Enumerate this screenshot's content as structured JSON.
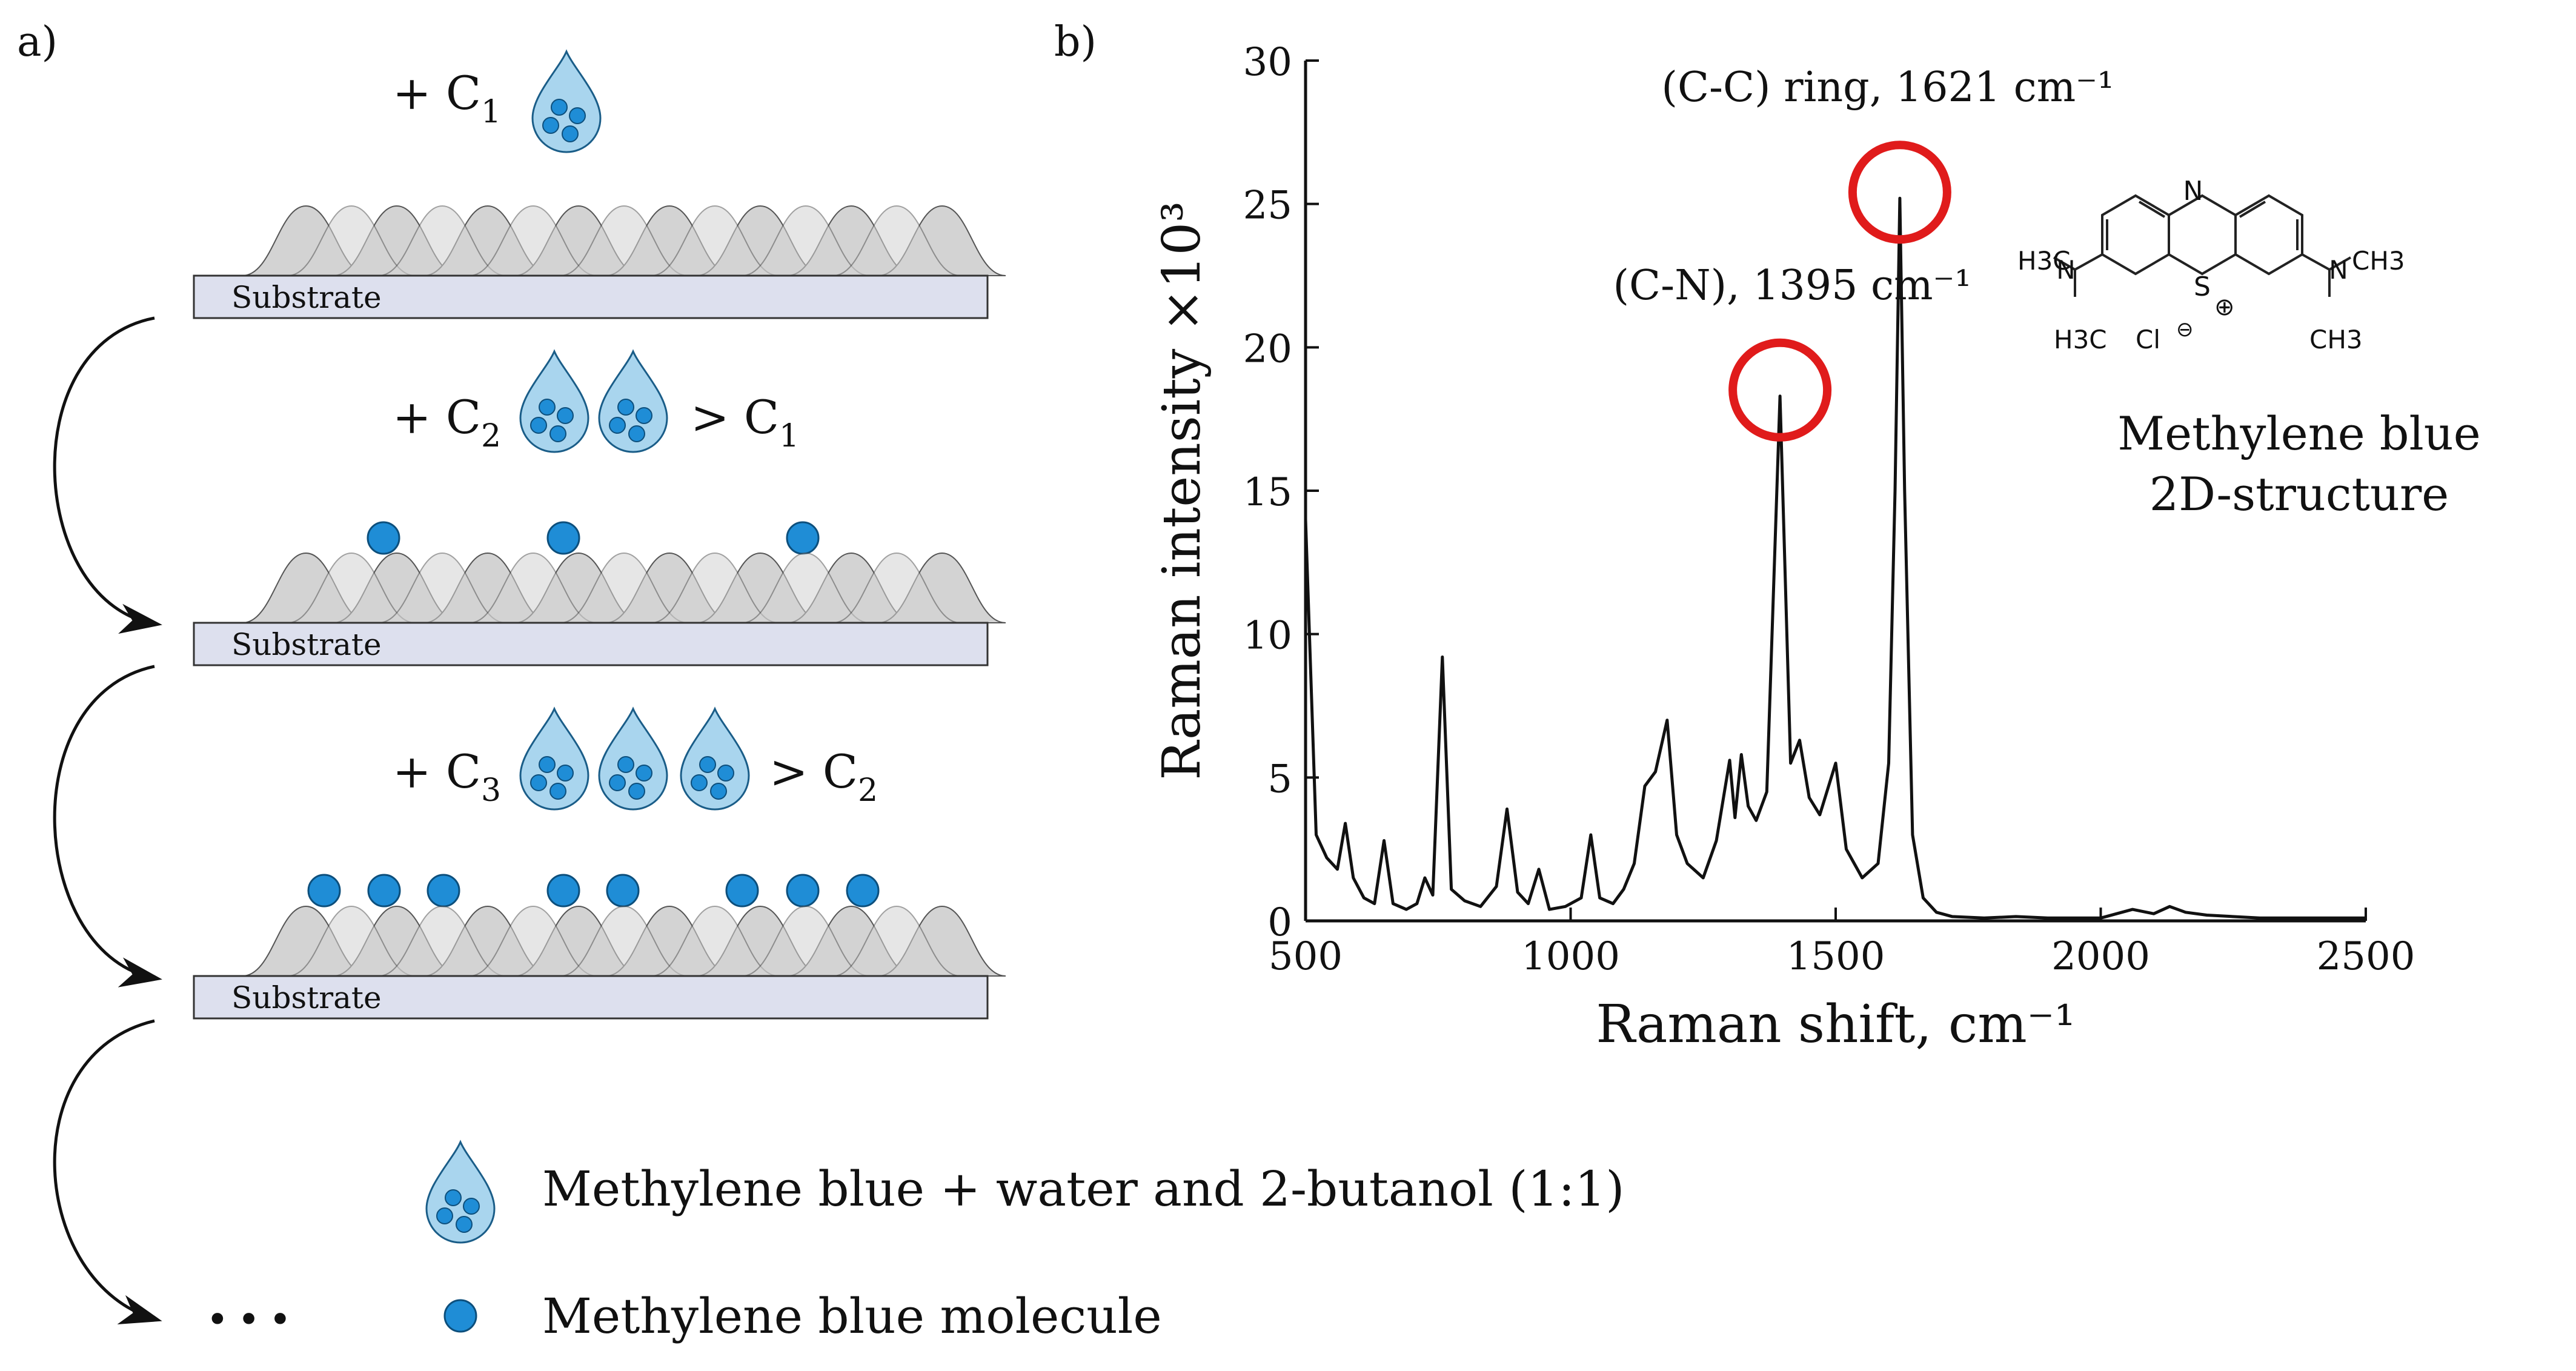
{
  "panel_a": {
    "label": "a)",
    "steps": [
      {
        "prefix": "+ C",
        "sub": "1",
        "compare": "",
        "compare_sub": ""
      },
      {
        "prefix": "+ C",
        "sub": "2",
        "compare": "> C",
        "compare_sub": "1"
      },
      {
        "prefix": "+ C",
        "sub": "3",
        "compare": "> C",
        "compare_sub": "2"
      }
    ],
    "substrate_label": "Substrate",
    "ellipsis": "•••",
    "legend": {
      "droplet": "Methylene blue + water and 2-butanol (1:1)",
      "molecule": "Methylene blue molecule"
    }
  },
  "panel_b": {
    "label": "b)",
    "structure_caption": [
      "Methylene blue",
      "2D-structure"
    ],
    "structure_labels": {
      "n": "N",
      "s": "S",
      "cl": "Cl",
      "left_top": "H3C",
      "left_bottom": "H3C",
      "right_top": "CH3",
      "right_bottom": "CH3"
    }
  },
  "chart_data": {
    "type": "line",
    "title": "",
    "xlabel": "Raman shift, cm⁻¹",
    "ylabel": "Raman intensity ×10³",
    "xlim": [
      500,
      2500
    ],
    "ylim": [
      0,
      30
    ],
    "xticks": [
      500,
      1000,
      1500,
      2000,
      2500
    ],
    "yticks": [
      0,
      5,
      10,
      15,
      20,
      25,
      30
    ],
    "series": [
      {
        "name": "Methylene blue",
        "x": [
          500,
          520,
          540,
          560,
          575,
          590,
          610,
          630,
          648,
          665,
          690,
          710,
          725,
          740,
          758,
          775,
          800,
          830,
          860,
          880,
          900,
          920,
          940,
          960,
          990,
          1020,
          1038,
          1055,
          1080,
          1100,
          1120,
          1140,
          1160,
          1182,
          1200,
          1220,
          1250,
          1275,
          1300,
          1310,
          1322,
          1335,
          1350,
          1370,
          1395,
          1415,
          1432,
          1450,
          1470,
          1500,
          1520,
          1550,
          1580,
          1600,
          1612,
          1621,
          1630,
          1645,
          1665,
          1690,
          1720,
          1780,
          1840,
          1900,
          2000,
          2060,
          2100,
          2130,
          2160,
          2200,
          2300,
          2400,
          2500
        ],
        "y": [
          14,
          3,
          2.2,
          1.8,
          3.4,
          1.5,
          0.8,
          0.6,
          2.8,
          0.6,
          0.4,
          0.6,
          1.5,
          0.9,
          9.2,
          1.1,
          0.7,
          0.5,
          1.2,
          3.9,
          1.0,
          0.6,
          1.8,
          0.4,
          0.5,
          0.8,
          3.0,
          0.8,
          0.6,
          1.1,
          2.0,
          4.7,
          5.2,
          7.0,
          3.0,
          2.0,
          1.5,
          2.8,
          5.6,
          3.6,
          5.8,
          4.0,
          3.5,
          4.5,
          18.3,
          5.5,
          6.3,
          4.3,
          3.7,
          5.5,
          2.5,
          1.5,
          2.0,
          5.5,
          15,
          25.2,
          15,
          3.0,
          0.8,
          0.3,
          0.15,
          0.1,
          0.15,
          0.1,
          0.1,
          0.4,
          0.25,
          0.5,
          0.3,
          0.2,
          0.1,
          0.1,
          0.1
        ]
      }
    ],
    "annotations": [
      {
        "text": "(C-C) ring, 1621 cm⁻¹",
        "x": 1621,
        "y": 25.2
      },
      {
        "text": "(C-N), 1395 cm⁻¹",
        "x": 1395,
        "y": 18.3
      }
    ]
  },
  "colors": {
    "molecule": "#1f8dd6",
    "droplet_fill": "#a9d5ee",
    "substrate": "#dde0ee",
    "bump": "#d3d3d3",
    "bump_dark": "#8a8a8a",
    "circle": "#e01b1b"
  }
}
